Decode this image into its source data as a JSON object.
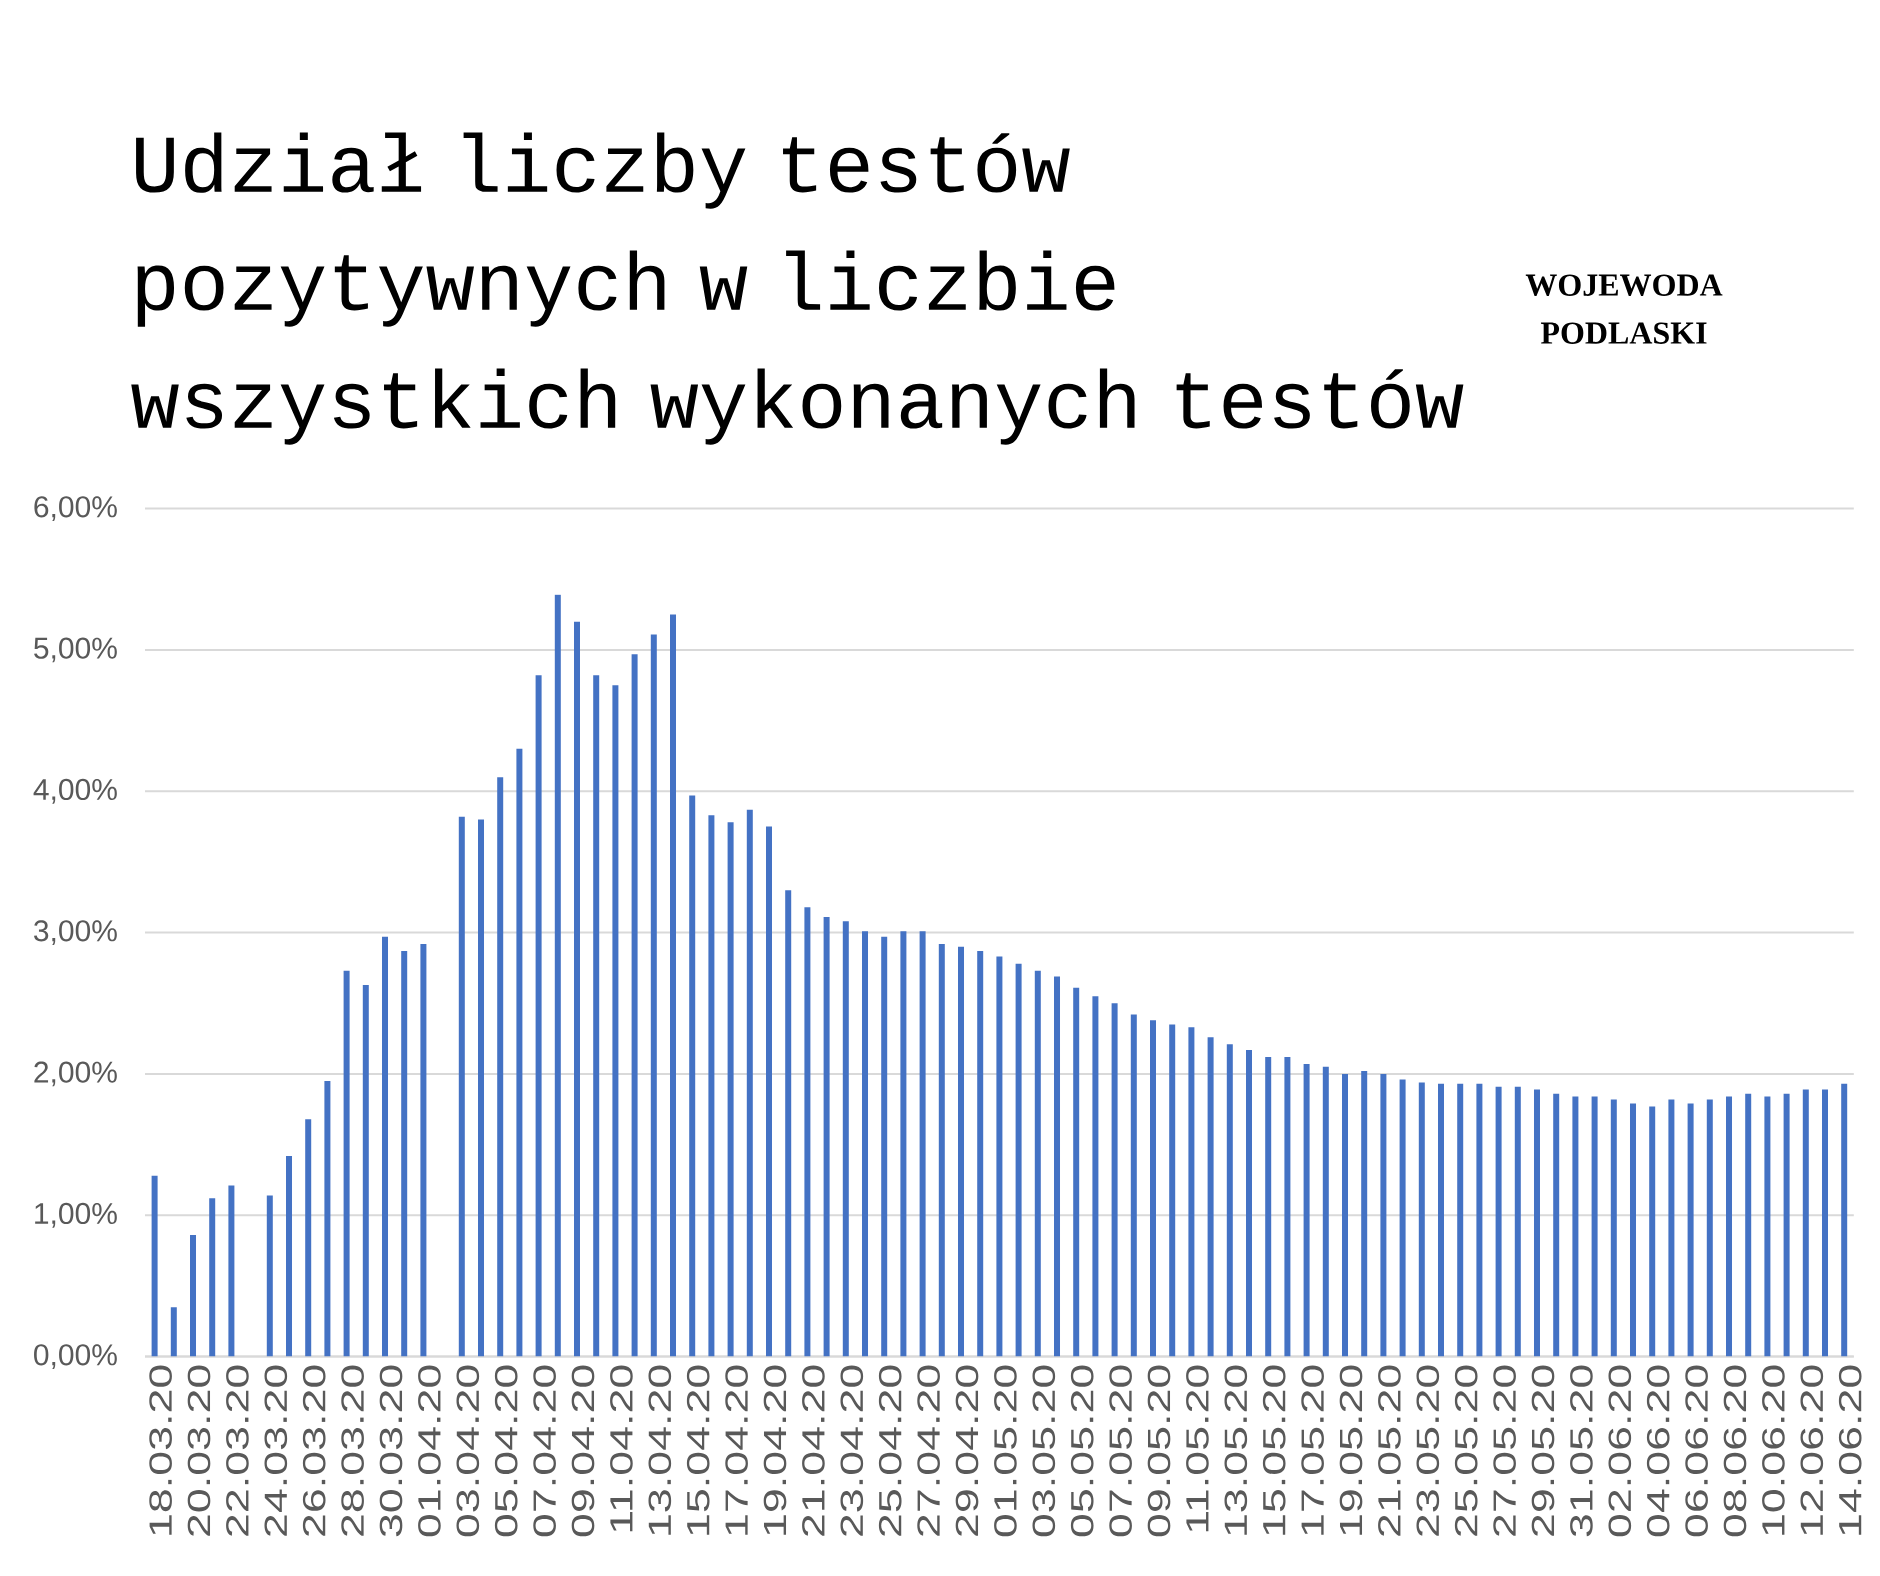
{
  "chart_data": {
    "type": "bar",
    "title": "Udział liczby testów pozytywnych w liczbie wszystkich wykonanych testów",
    "annotations": [
      "WOJEWODA PODLASKI"
    ],
    "categories": [
      "18.03.20",
      null,
      "20.03.20",
      null,
      "22.03.20",
      null,
      "24.03.20",
      null,
      "26.03.20",
      null,
      "28.03.20",
      null,
      "30.03.20",
      null,
      "01.04.20",
      null,
      "03.04.20",
      null,
      "05.04.20",
      null,
      "07.04.20",
      null,
      "09.04.20",
      null,
      "11.04.20",
      null,
      "13.04.20",
      null,
      "15.04.20",
      null,
      "17.04.20",
      null,
      "19.04.20",
      null,
      "21.04.20",
      null,
      "23.04.20",
      null,
      "25.04.20",
      null,
      "27.04.20",
      null,
      "29.04.20",
      null,
      "01.05.20",
      null,
      "03.05.20",
      null,
      "05.05.20",
      null,
      "07.05.20",
      null,
      "09.05.20",
      null,
      "11.05.20",
      null,
      "13.05.20",
      null,
      "15.05.20",
      null,
      "17.05.20",
      null,
      "19.05.20",
      null,
      "21.05.20",
      null,
      "23.05.20",
      null,
      "25.05.20",
      null,
      "27.05.20",
      null,
      "29.05.20",
      null,
      "31.05.20",
      null,
      "02.06.20",
      null,
      "04.06.20",
      null,
      "06.06.20",
      null,
      "08.06.20",
      null,
      "10.06.20",
      null,
      "12.06.20",
      null,
      "14.06.20"
    ],
    "values": [
      1.28,
      0.35,
      0.86,
      1.12,
      1.21,
      null,
      1.14,
      1.42,
      1.68,
      1.95,
      2.73,
      2.63,
      2.97,
      2.87,
      2.92,
      null,
      3.82,
      3.8,
      4.1,
      4.3,
      4.82,
      5.39,
      5.2,
      4.82,
      4.75,
      4.97,
      5.11,
      5.25,
      3.97,
      3.83,
      3.78,
      3.87,
      3.75,
      3.3,
      3.18,
      3.11,
      3.08,
      3.01,
      2.97,
      3.01,
      3.01,
      2.92,
      2.9,
      2.87,
      2.83,
      2.78,
      2.73,
      2.69,
      2.61,
      2.55,
      2.5,
      2.42,
      2.38,
      2.35,
      2.33,
      2.26,
      2.21,
      2.17,
      2.12,
      2.12,
      2.07,
      2.05,
      2.0,
      2.02,
      2.0,
      1.96,
      1.94,
      1.93,
      1.93,
      1.93,
      1.91,
      1.91,
      1.89,
      1.86,
      1.84,
      1.84,
      1.82,
      1.79,
      1.77,
      1.82,
      1.79,
      1.82,
      1.84,
      1.86,
      1.84,
      1.86,
      1.89,
      1.89,
      1.93
    ],
    "color": "#4472c4",
    "ylim": [
      0,
      6
    ],
    "yticks": [
      {
        "value": 0,
        "label": "0,00%"
      },
      {
        "value": 1,
        "label": "1,00%"
      },
      {
        "value": 2,
        "label": "2,00%"
      },
      {
        "value": 3,
        "label": "3,00%"
      },
      {
        "value": 4,
        "label": "4,00%"
      },
      {
        "value": 5,
        "label": "5,00%"
      },
      {
        "value": 6,
        "label": "6,00%"
      }
    ],
    "grid": "y"
  }
}
